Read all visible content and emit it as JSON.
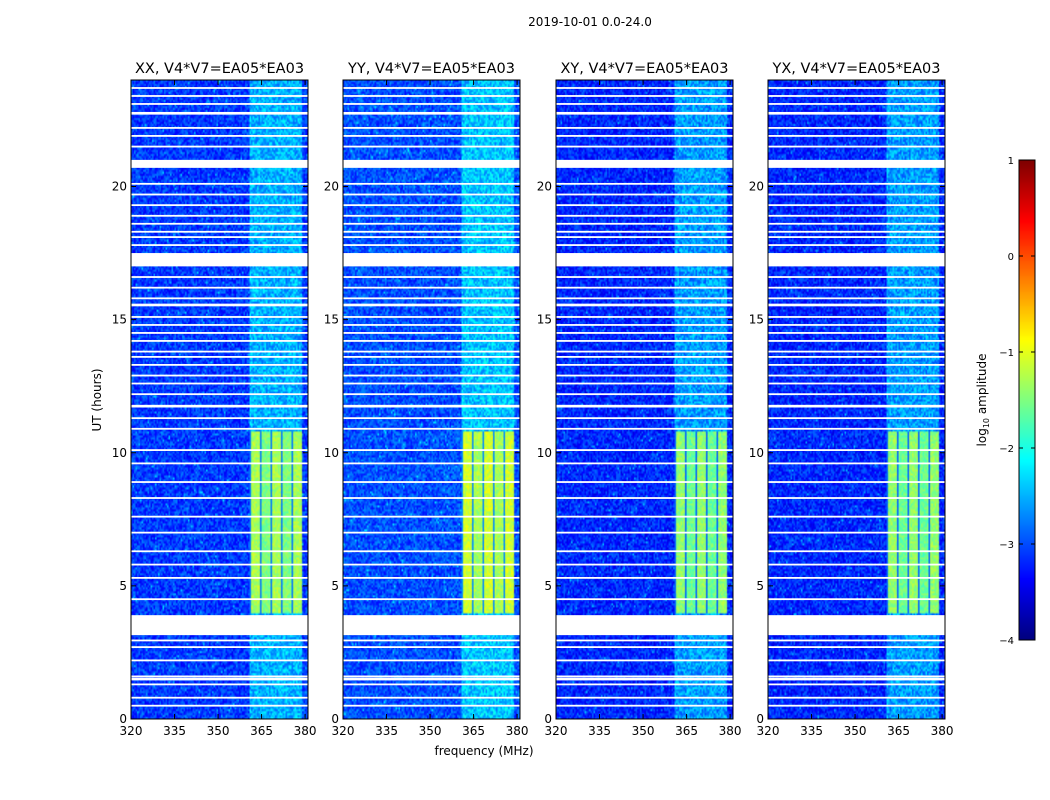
{
  "figure": {
    "suptitle": "2019-10-01 0.0-24.0"
  },
  "colors": {
    "background": "#ffffff",
    "gap": "#ffffff",
    "colormap": "jet"
  },
  "chart_data": {
    "type": "heatmap",
    "colormap": "jet",
    "xlabel": "frequency (MHz)",
    "ylabel": "UT (hours)",
    "xlim": [
      320,
      381
    ],
    "ylim": [
      0,
      24
    ],
    "xticks": [
      320,
      335,
      350,
      365,
      380
    ],
    "yticks": [
      0,
      5,
      10,
      15,
      20
    ],
    "color_range": [
      -4,
      1
    ],
    "colorbar": {
      "label": "log10 amplitude",
      "label_main": "log",
      "label_sub": "10",
      "label_rest": " amplitude",
      "ticks": [
        1,
        0,
        -1,
        -2,
        -3,
        -4
      ]
    },
    "panels": [
      {
        "title": "XX, V4*V7=EA05*EA03",
        "band_level": -1.4,
        "background_level": -3.1
      },
      {
        "title": "YY, V4*V7=EA05*EA03",
        "band_level": -1.2,
        "background_level": -3.0
      },
      {
        "title": "XY, V4*V7=EA05*EA03",
        "band_level": -1.5,
        "background_level": -3.2
      },
      {
        "title": "YX, V4*V7=EA05*EA03",
        "band_level": -1.5,
        "background_level": -3.2
      }
    ],
    "rfi_band_mhz": [
      361,
      379
    ],
    "strong_rfi_ut_range": [
      4.0,
      10.8
    ],
    "flagged_ut_ranges": [
      [
        3.15,
        3.9
      ],
      [
        1.45,
        1.55
      ],
      [
        20.7,
        21.0
      ],
      [
        17.0,
        17.5
      ],
      [
        11.7,
        11.8
      ],
      [
        15.5,
        15.6
      ],
      [
        22.7,
        22.8
      ]
    ],
    "flagged_ut_lines": [
      0.5,
      0.8,
      1.3,
      1.6,
      2.2,
      2.7,
      2.95,
      4.5,
      5.3,
      5.8,
      6.3,
      7.0,
      7.6,
      8.3,
      8.9,
      9.6,
      10.1,
      10.9,
      11.3,
      12.2,
      12.6,
      12.9,
      13.3,
      13.6,
      13.8,
      14.2,
      14.5,
      14.8,
      15.1,
      15.8,
      16.2,
      16.6,
      17.8,
      18.1,
      18.3,
      18.6,
      18.9,
      19.3,
      19.7,
      20.1,
      21.5,
      21.9,
      22.2,
      23.1,
      23.4,
      23.7
    ]
  }
}
